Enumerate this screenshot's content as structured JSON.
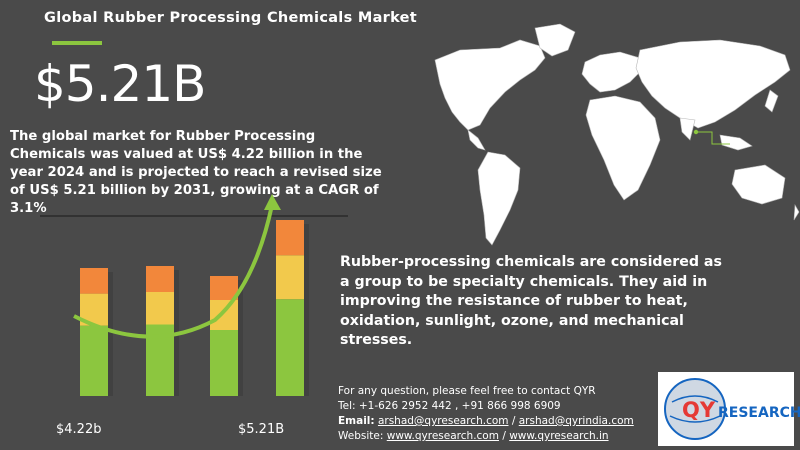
{
  "header": {
    "title": "Global Rubber Processing Chemicals Market",
    "market_value": "$5.21B"
  },
  "summary_text": "The global market for Rubber Processing Chemicals was valued at US$ 4.22 billion in the year 2024 and is projected to reach a revised size of US$ 5.21 billion by 2031, growing at a CAGR of 3.1%",
  "description_text": "Rubber-processing chemicals are considered as a group to be specialty chemicals. They aid in improving the resistance of rubber to heat, oxidation, sunlight, ozone, and mechanical stresses.",
  "contact": {
    "intro": "For any question, please feel free to contact QYR",
    "tel": "Tel: +1-626 2952 442 , +91 866 998 6909",
    "email_label": "Email:",
    "email_1": "arshad@qyresearch.com",
    "email_sep": "/",
    "email_2": "arshad@qyrindia.com",
    "website_label": "Website:",
    "website_1": "www.qyresearch.com",
    "website_sep": "/",
    "website_2": "www.qyresearch.in"
  },
  "chart_data": {
    "type": "bar",
    "categories": [
      "",
      "",
      "",
      ""
    ],
    "data_labels": [
      "$4.22b",
      "$5.21B"
    ],
    "colors": {
      "bottom": "#8cc63f",
      "middle": "#f2c94c",
      "top": "#f2873b",
      "arrow": "#8cc63f",
      "shadow": "#3a3a3a"
    }
  },
  "logo": {
    "brand_prefix": "QY",
    "brand_suffix": "RESEARCH"
  },
  "colors": {
    "background": "#4a4a4a",
    "accent": "#8cc63f",
    "map": "#ffffff",
    "logo_red": "#e53935"
  }
}
